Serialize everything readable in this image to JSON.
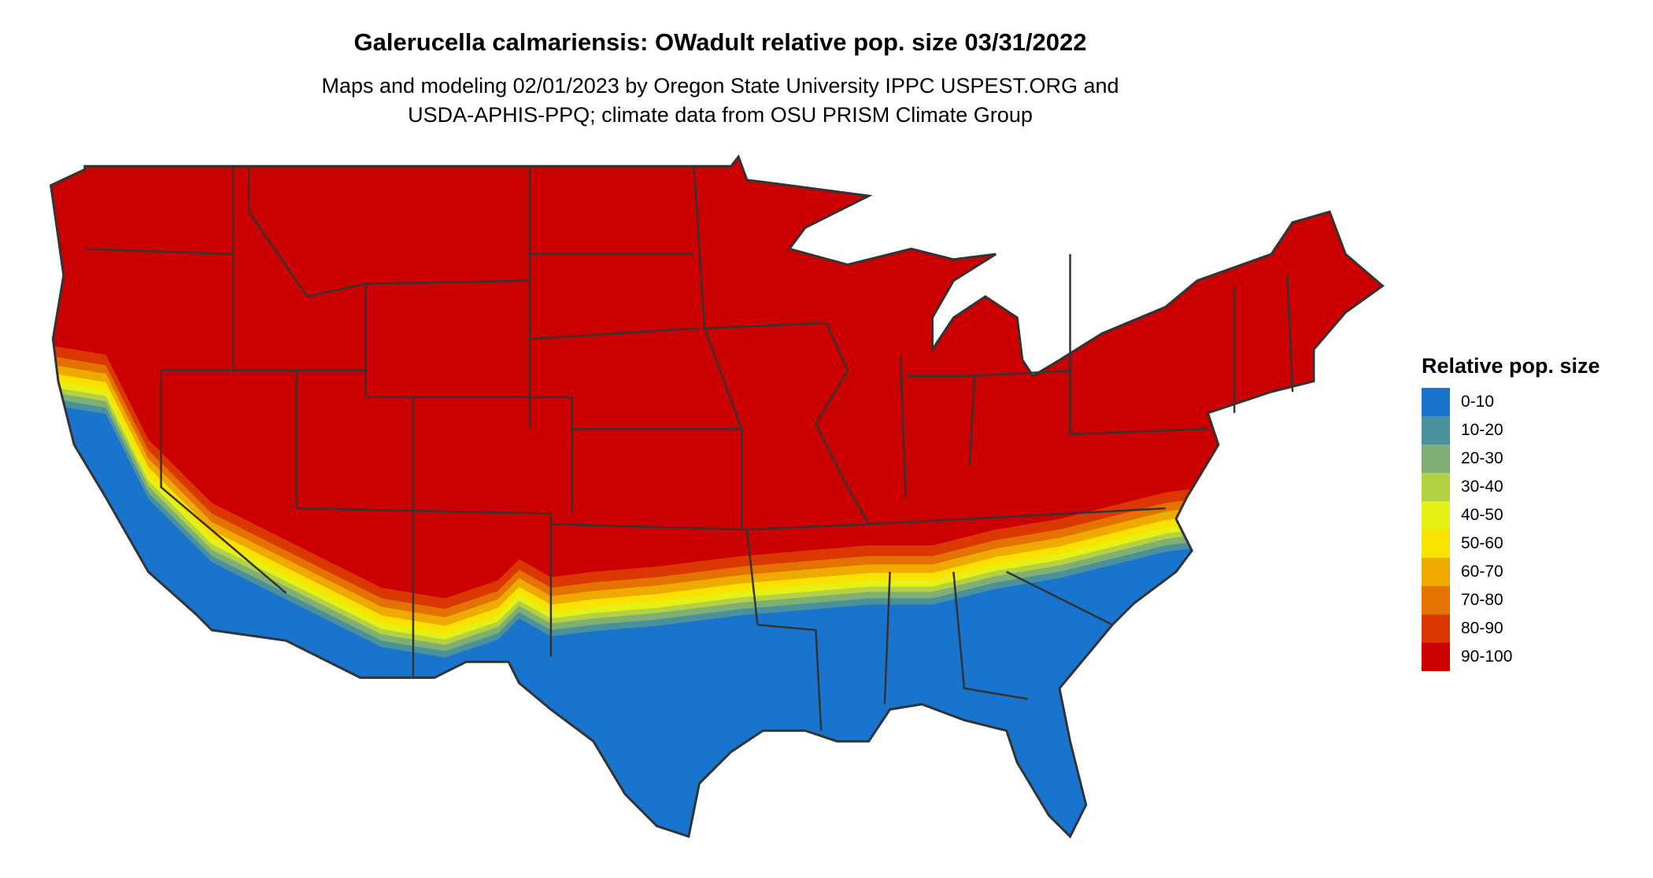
{
  "title": "Galerucella calmariensis: OWadult relative pop. size 03/31/2022",
  "subtitle_lines": [
    "Maps and modeling 02/01/2023 by Oregon State University IPPC USPEST.ORG and",
    "USDA-APHIS-PPQ; climate data from OSU PRISM Climate Group"
  ],
  "map": {
    "region": "Contiguous United States with state boundaries",
    "border_color": "#333333",
    "dominant_class": "90-100",
    "southern_class": "0-10"
  },
  "legend": {
    "title": "Relative pop. size",
    "items": [
      {
        "label": "0-10",
        "color": "#1874CD"
      },
      {
        "label": "10-20",
        "color": "#4A919E"
      },
      {
        "label": "20-30",
        "color": "#7FAF73"
      },
      {
        "label": "30-40",
        "color": "#B2D145"
      },
      {
        "label": "40-50",
        "color": "#E5F014"
      },
      {
        "label": "50-60",
        "color": "#F9E200"
      },
      {
        "label": "60-70",
        "color": "#EFAA00"
      },
      {
        "label": "70-80",
        "color": "#E37200"
      },
      {
        "label": "80-90",
        "color": "#DA3800"
      },
      {
        "label": "90-100",
        "color": "#CC0000"
      }
    ]
  }
}
